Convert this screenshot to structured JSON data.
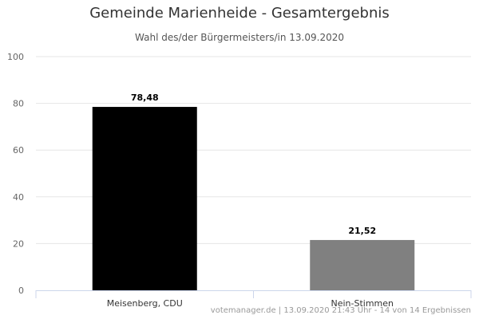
{
  "chart_data": {
    "type": "bar",
    "title": "Gemeinde Marienheide - Gesamtergebnis",
    "subtitle": "Wahl des/der Bürgermeisters/in 13.09.2020",
    "categories": [
      "Meisenberg, CDU",
      "Nein-Stimmen"
    ],
    "values": [
      78.48,
      21.52
    ],
    "data_labels": [
      "78,48",
      "21,52"
    ],
    "colors": [
      "#000000",
      "#808080"
    ],
    "xlabel": "",
    "ylabel": "",
    "ylim": [
      0,
      100
    ],
    "yticks": [
      0,
      20,
      40,
      60,
      80,
      100
    ],
    "grid": true,
    "credit": "votemanager.de | 13.09.2020 21:43 Uhr - 14 von 14 Ergebnissen"
  }
}
